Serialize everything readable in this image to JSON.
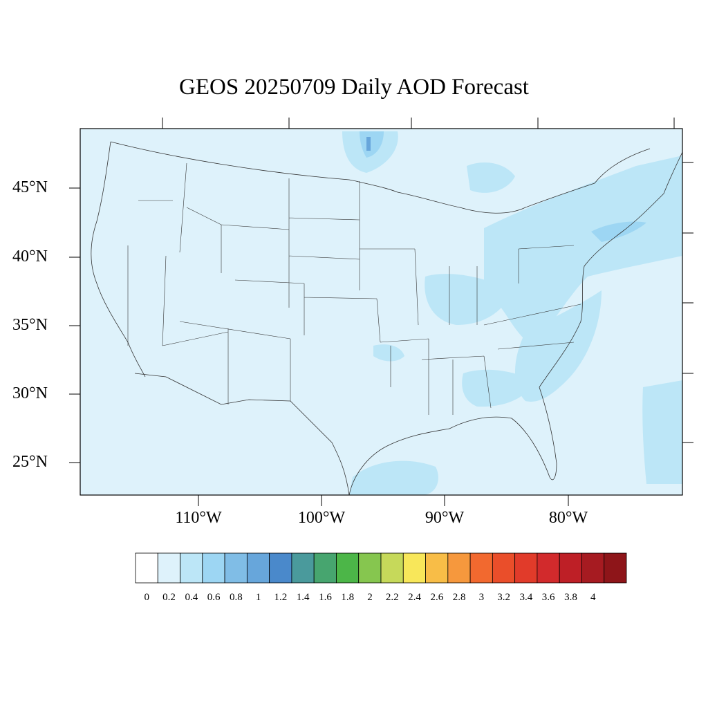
{
  "title": "GEOS 20250709 Daily AOD Forecast",
  "lat_labels": [
    "45°N",
    "40°N",
    "35°N",
    "30°N",
    "25°N"
  ],
  "lon_labels": [
    "110°W",
    "100°W",
    "90°W",
    "80°W"
  ],
  "colorbar": {
    "labels": [
      "0",
      "0.2",
      "0.4",
      "0.6",
      "0.8",
      "1",
      "1.2",
      "1.4",
      "1.6",
      "1.8",
      "2",
      "2.2",
      "2.4",
      "2.6",
      "2.8",
      "3",
      "3.2",
      "3.4",
      "3.6",
      "3.8",
      "4"
    ],
    "colors": [
      "#ffffff",
      "#def2fb",
      "#bce6f7",
      "#9dd6f3",
      "#80bde6",
      "#67a6db",
      "#4a89cb",
      "#4a9a9c",
      "#47a56f",
      "#4cb648",
      "#86c64f",
      "#c6d95a",
      "#f8e75a",
      "#f8bd47",
      "#f6983d",
      "#f2692f",
      "#ea4e2a",
      "#e13b2a",
      "#d22a2c",
      "#be1f26",
      "#a61b21",
      "#8e1519"
    ]
  },
  "colors": {
    "background_aod": "#def2fb",
    "elevated_aod": "#bce6f7",
    "moderate_aod": "#9dd6f3",
    "hotspot_aod": "#67a6db",
    "borders": "#333333"
  }
}
